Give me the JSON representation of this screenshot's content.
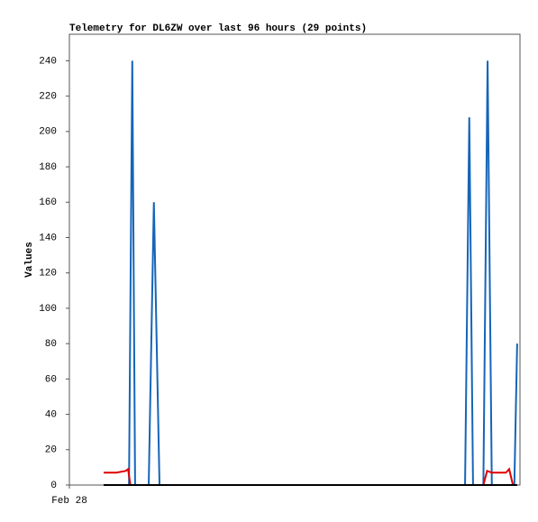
{
  "chart_data": {
    "type": "line",
    "title": "Telemetry for DL6ZW over last 96 hours (29 points)",
    "y_label": "Values",
    "xlim": [
      0,
      96
    ],
    "xticks": [
      {
        "value": 0,
        "label": "Feb 28"
      }
    ],
    "ylim": [
      0,
      255
    ],
    "yticks": [
      0,
      20,
      40,
      60,
      80,
      100,
      120,
      140,
      160,
      180,
      200,
      220,
      240
    ],
    "grid": false,
    "series": [
      {
        "color": "#1565b8",
        "x": [
          7.3,
          12.7,
          13.4,
          14.0,
          16.9,
          18.0,
          19.2,
          84.3,
          85.2,
          86.0,
          88.2,
          89.1,
          90.0,
          94.8,
          95.4
        ],
        "values": [
          0,
          0,
          240,
          0,
          0,
          160,
          0,
          0,
          208,
          0,
          0,
          240,
          0,
          0,
          80
        ]
      },
      {
        "color": "#e00000",
        "x": [
          7.3,
          10.0,
          12.0,
          12.5,
          13.0,
          88.2,
          89.0,
          90.0,
          93.0,
          93.7,
          94.5,
          95.4
        ],
        "values": [
          7,
          7,
          8,
          9,
          0,
          0,
          8,
          7,
          7,
          9,
          0,
          0
        ]
      },
      {
        "color": "#000000",
        "x": [
          7.3,
          95.4
        ],
        "values": [
          0,
          0
        ]
      }
    ]
  }
}
